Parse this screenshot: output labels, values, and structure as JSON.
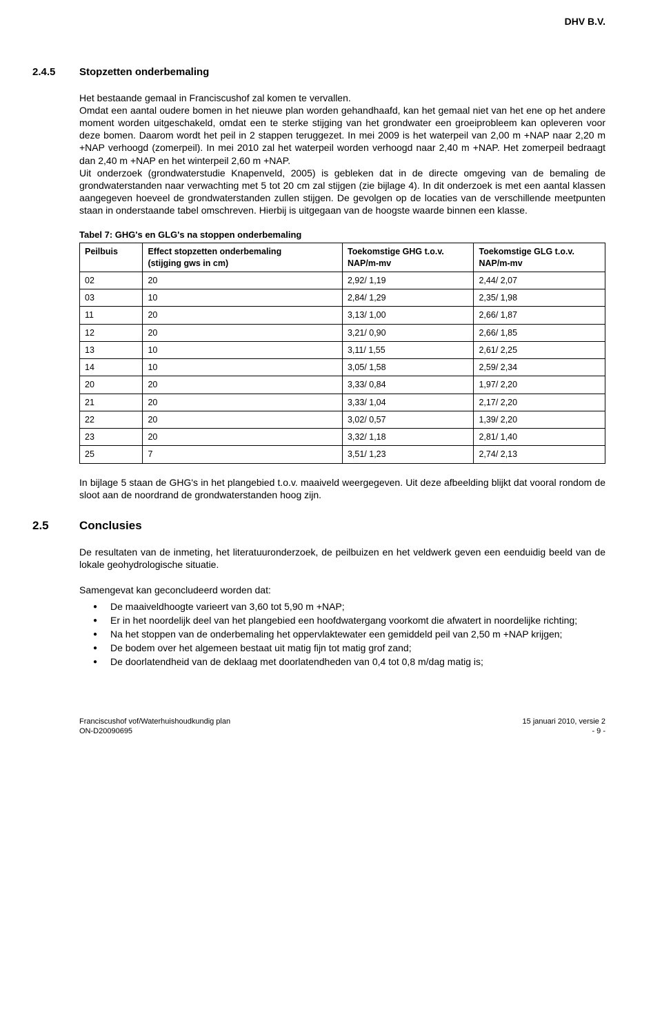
{
  "header": {
    "company": "DHV B.V."
  },
  "section245": {
    "num": "2.4.5",
    "title": "Stopzetten onderbemaling",
    "para": "Het bestaande gemaal in Franciscushof zal komen te vervallen.\nOmdat een aantal oudere bomen in het nieuwe plan worden gehandhaafd, kan het gemaal niet van het ene op het andere moment worden uitgeschakeld, omdat een te sterke stijging van het grondwater een groeiprobleem kan opleveren voor deze bomen. Daarom wordt het peil in 2 stappen teruggezet. In mei 2009 is het waterpeil van 2,00 m +NAP naar 2,20 m +NAP verhoogd (zomerpeil). In mei 2010 zal het waterpeil worden verhoogd naar 2,40 m +NAP. Het zomerpeil bedraagt dan 2,40 m +NAP en het winterpeil 2,60 m +NAP.\nUit onderzoek (grondwaterstudie Knapenveld, 2005) is gebleken dat in de directe omgeving van de bemaling de grondwaterstanden naar verwachting met 5 tot 20 cm zal stijgen (zie bijlage 4). In dit onderzoek is met een aantal klassen aangegeven hoeveel de grondwaterstanden zullen stijgen. De gevolgen op de locaties van de verschillende meetpunten staan in onderstaande tabel omschreven. Hierbij is uitgegaan van de hoogste waarde binnen een klasse."
  },
  "table7": {
    "caption": "Tabel 7: GHG's en GLG's na stoppen onderbemaling",
    "columns": [
      {
        "line1": "Peilbuis",
        "line2": ""
      },
      {
        "line1": "Effect stopzetten onderbemaling",
        "line2": "(stijging gws in cm)"
      },
      {
        "line1": "Toekomstige GHG t.o.v.",
        "line2": "NAP/m-mv"
      },
      {
        "line1": "Toekomstige GLG t.o.v.",
        "line2": "NAP/m-mv"
      }
    ],
    "rows": [
      [
        "02",
        "20",
        "2,92/ 1,19",
        "2,44/ 2,07"
      ],
      [
        "03",
        "10",
        "2,84/ 1,29",
        "2,35/ 1,98"
      ],
      [
        "11",
        "20",
        "3,13/ 1,00",
        "2,66/ 1,87"
      ],
      [
        "12",
        "20",
        "3,21/ 0,90",
        "2,66/ 1,85"
      ],
      [
        "13",
        "10",
        "3,11/ 1,55",
        "2,61/ 2,25"
      ],
      [
        "14",
        "10",
        "3,05/ 1,58",
        "2,59/ 2,34"
      ],
      [
        "20",
        "20",
        "3,33/ 0,84",
        "1,97/ 2,20"
      ],
      [
        "21",
        "20",
        "3,33/ 1,04",
        "2,17/ 2,20"
      ],
      [
        "22",
        "20",
        "3,02/ 0,57",
        "1,39/ 2,20"
      ],
      [
        "23",
        "20",
        "3,32/ 1,18",
        "2,81/ 1,40"
      ],
      [
        "25",
        "7",
        "3,51/ 1,23",
        "2,74/ 2,13"
      ]
    ],
    "col_widths": [
      "12%",
      "38%",
      "25%",
      "25%"
    ]
  },
  "after_table": "In bijlage 5 staan de GHG's in het plangebied t.o.v. maaiveld weergegeven. Uit deze afbeelding blijkt dat vooral rondom de sloot aan de noordrand de grondwaterstanden hoog zijn.",
  "section25": {
    "num": "2.5",
    "title": "Conclusies",
    "para1": "De resultaten van de inmeting, het literatuuronderzoek, de peilbuizen en het veldwerk geven een eenduidig beeld van de lokale geohydrologische situatie.",
    "para2": "Samengevat kan geconcludeerd worden dat:",
    "bullets": [
      "De maaiveldhoogte varieert van 3,60 tot 5,90 m +NAP;",
      "Er in het noordelijk deel van het plangebied een hoofdwatergang voorkomt die afwatert in noordelijke richting;",
      "Na het stoppen van de onderbemaling het oppervlaktewater een gemiddeld peil van 2,50 m +NAP krijgen;",
      "De bodem over het algemeen bestaat uit matig fijn tot matig grof zand;",
      "De doorlatendheid van de deklaag met doorlatendheden van 0,4 tot 0,8 m/dag matig is;"
    ]
  },
  "footer": {
    "left1": "Franciscushof vof/Waterhuishoudkundig plan",
    "left2": "ON-D20090695",
    "right1": "15 januari 2010, versie 2",
    "right2": "- 9 -"
  }
}
